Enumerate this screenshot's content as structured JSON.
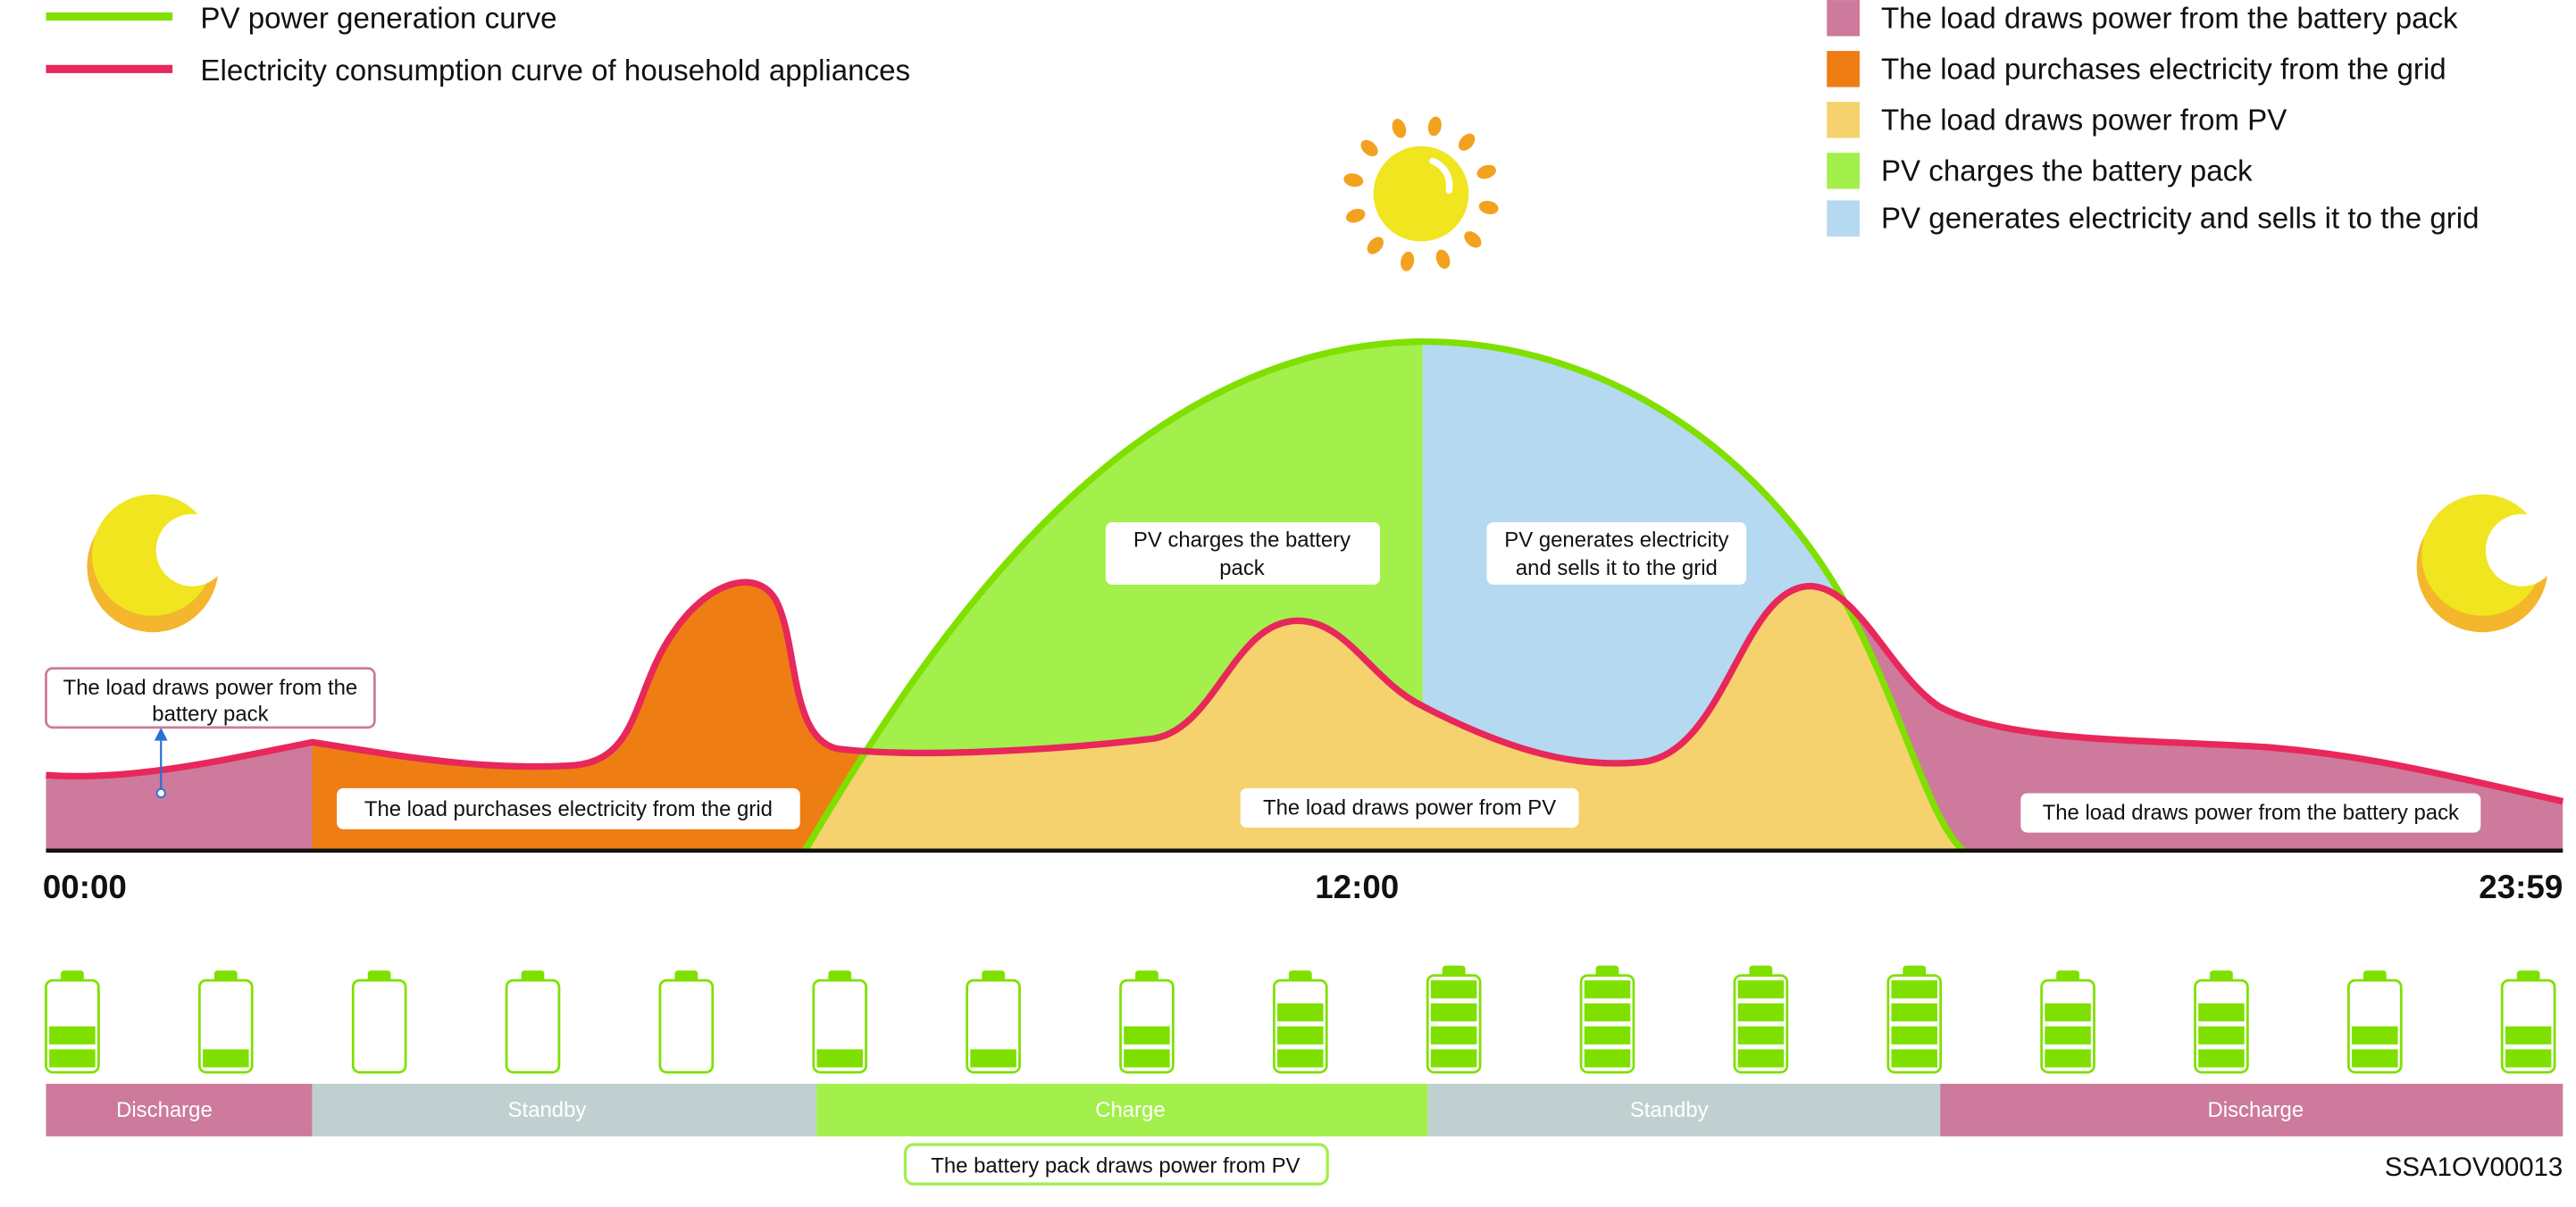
{
  "colors": {
    "pv_line": "#7fe000",
    "load_line": "#e8275a",
    "battery_load": "#cd7a9c",
    "grid_purchase": "#ee7d14",
    "pv_load": "#f5d26e",
    "pv_charge": "#a3ef4c",
    "pv_sell": "#b5d9f0",
    "standby": "#c0d0d0"
  },
  "legend_lines": [
    {
      "label": "PV power generation curve"
    },
    {
      "label": "Electricity consumption curve of household appliances"
    }
  ],
  "legend_areas": [
    {
      "label": "The load draws power from the battery pack"
    },
    {
      "label": "The load purchases electricity from the grid"
    },
    {
      "label": "The load draws power from PV"
    },
    {
      "label": "PV charges the battery pack"
    },
    {
      "label": "PV generates electricity and sells it to the grid"
    }
  ],
  "area_labels": {
    "battery_left": [
      "The load draws power from the",
      "battery pack"
    ],
    "grid": "The load purchases electricity from the grid",
    "pv_charge": [
      "PV charges the battery",
      "pack"
    ],
    "pv_sell": [
      "PV generates electricity",
      "and sells it to the grid"
    ],
    "pv_load": "The load draws power from PV",
    "battery_right": "The load draws power from the battery pack"
  },
  "time_axis": {
    "start": "00:00",
    "mid": "12:00",
    "end": "23:59"
  },
  "battery_levels": [
    2,
    1,
    0,
    0,
    0,
    1,
    1,
    2,
    3,
    4,
    4,
    4,
    4,
    3,
    3,
    2,
    2
  ],
  "battery_max_level": 4,
  "status_bar": [
    {
      "label": "Discharge"
    },
    {
      "label": "Standby"
    },
    {
      "label": "Charge"
    },
    {
      "label": "Standby"
    },
    {
      "label": "Discharge"
    }
  ],
  "charge_note": "The battery pack draws power from PV",
  "figure_id": "SSA1OV00013"
}
